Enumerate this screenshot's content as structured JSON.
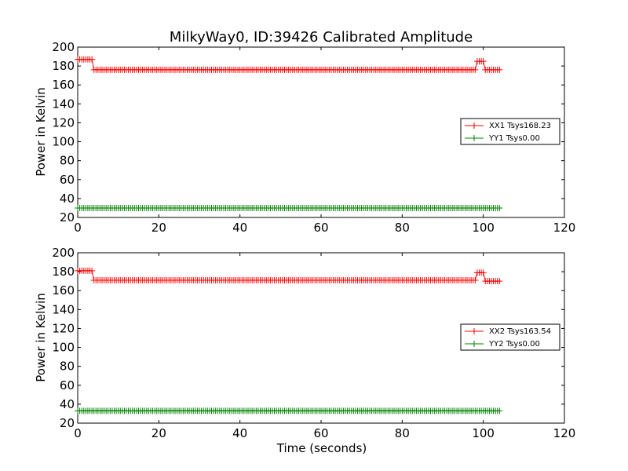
{
  "figure": {
    "title": "MilkyWay0, ID:39426 Calibrated Amplitude",
    "xlabel": "Time (seconds)"
  },
  "colors": {
    "xx": "#ff0000",
    "yy": "#008000",
    "frame": "#000000",
    "background": "#ffffff"
  },
  "chart_data": [
    {
      "type": "line",
      "title": "MilkyWay0, ID:39426 Calibrated Amplitude",
      "xlabel": "",
      "ylabel": "Power in Kelvin",
      "xlim": [
        0,
        120
      ],
      "ylim": [
        20,
        200
      ],
      "xticks": [
        0,
        20,
        40,
        60,
        80,
        100,
        120
      ],
      "yticks": [
        20,
        40,
        60,
        80,
        100,
        120,
        140,
        160,
        180,
        200
      ],
      "grid": false,
      "legend_position": "center-right",
      "marker": "+",
      "series": [
        {
          "name": "XX1 Tsys168.23",
          "color": "#ff0000",
          "segments": [
            {
              "x": [
                0,
                3.5
              ],
              "y": 187
            },
            {
              "x": [
                4,
                98
              ],
              "y": 176
            },
            {
              "x": [
                98.5,
                100
              ],
              "y": 185
            },
            {
              "x": [
                100.5,
                104
              ],
              "y": 176
            }
          ]
        },
        {
          "name": "YY1 Tsys0.00",
          "color": "#008000",
          "segments": [
            {
              "x": [
                0,
                104
              ],
              "y": 30
            }
          ]
        }
      ]
    },
    {
      "type": "line",
      "title": "",
      "xlabel": "Time (seconds)",
      "ylabel": "Power in Kelvin",
      "xlim": [
        0,
        120
      ],
      "ylim": [
        20,
        200
      ],
      "xticks": [
        0,
        20,
        40,
        60,
        80,
        100,
        120
      ],
      "yticks": [
        20,
        40,
        60,
        80,
        100,
        120,
        140,
        160,
        180,
        200
      ],
      "grid": false,
      "legend_position": "center-right",
      "marker": "+",
      "series": [
        {
          "name": "XX2 Tsys163.54",
          "color": "#ff0000",
          "segments": [
            {
              "x": [
                0,
                3.5
              ],
              "y": 181
            },
            {
              "x": [
                4,
                98
              ],
              "y": 171
            },
            {
              "x": [
                98.5,
                100
              ],
              "y": 179
            },
            {
              "x": [
                100.5,
                104
              ],
              "y": 170
            }
          ]
        },
        {
          "name": "YY2 Tsys0.00",
          "color": "#008000",
          "segments": [
            {
              "x": [
                0,
                104
              ],
              "y": 33
            }
          ]
        }
      ]
    }
  ]
}
